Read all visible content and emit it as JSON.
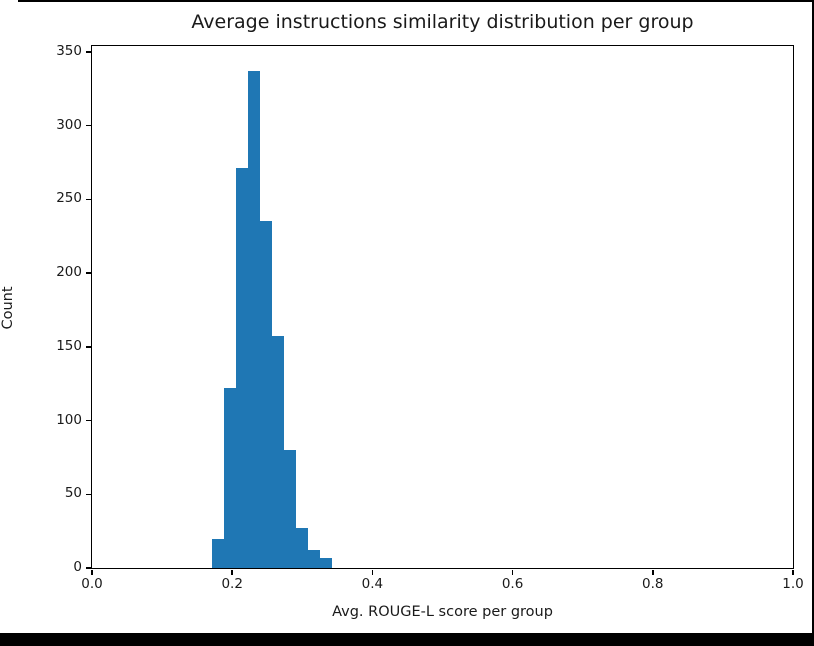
{
  "figure": {
    "title": "Average instructions similarity distribution per group",
    "xlabel": "Avg. ROUGE-L score per group",
    "ylabel": "Count"
  },
  "chart_data": {
    "type": "bar",
    "subtype": "histogram",
    "title": "Average instructions similarity distribution per group",
    "xlabel": "Avg. ROUGE-L score per group",
    "ylabel": "Count",
    "bar_color": "#1f77b4",
    "axis_color": "#000000",
    "text_color": "#1a1a1a",
    "grid": false,
    "legend": null,
    "xlim": [
      0.0,
      1.0
    ],
    "ylim": [
      0,
      354
    ],
    "x_ticks": [
      0.0,
      0.2,
      0.4,
      0.6,
      0.8,
      1.0
    ],
    "x_tick_labels": [
      "0.0",
      "0.2",
      "0.4",
      "0.6",
      "0.8",
      "1.0"
    ],
    "y_ticks": [
      0,
      50,
      100,
      150,
      200,
      250,
      300,
      350
    ],
    "y_tick_labels": [
      "0",
      "50",
      "100",
      "150",
      "200",
      "250",
      "300",
      "350"
    ],
    "bin_edges": [
      0.1714,
      0.1886,
      0.2057,
      0.2229,
      0.24,
      0.2571,
      0.2743,
      0.2914,
      0.3086,
      0.3257,
      0.3429
    ],
    "counts": [
      20,
      122,
      271,
      337,
      235,
      157,
      80,
      27,
      12,
      7
    ]
  }
}
